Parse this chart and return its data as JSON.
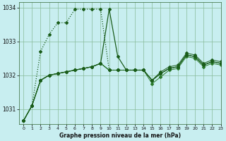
{
  "title": "Graphe pression niveau de la mer (hPa)",
  "bg_color": "#c8eef0",
  "grid_color": "#88bb99",
  "line_color_dark": "#1a5c1a",
  "line_color_mid": "#2a7a2a",
  "xlim": [
    -0.5,
    23
  ],
  "ylim": [
    1030.55,
    1034.15
  ],
  "yticks": [
    1031,
    1032,
    1033,
    1034
  ],
  "xticks": [
    0,
    1,
    2,
    3,
    4,
    5,
    6,
    7,
    8,
    9,
    10,
    11,
    12,
    13,
    14,
    15,
    16,
    17,
    18,
    19,
    20,
    21,
    22,
    23
  ],
  "series_dotted": [
    1030.65,
    1031.1,
    1032.7,
    1033.2,
    1033.55,
    1033.55,
    1033.95,
    1033.95,
    1033.95,
    1033.95,
    1032.15,
    1032.15,
    1032.15,
    1032.15,
    1032.15,
    1031.85,
    1032.05,
    1032.2,
    1032.25,
    1032.6,
    1032.55,
    1032.3,
    1032.4,
    1032.35
  ],
  "series_solid1": [
    1030.65,
    1031.1,
    1031.85,
    1032.0,
    1032.05,
    1032.1,
    1032.15,
    1032.2,
    1032.25,
    1032.35,
    1033.95,
    1032.55,
    1032.15,
    1032.15,
    1032.15,
    1031.85,
    1032.05,
    1032.2,
    1032.25,
    1032.6,
    1032.55,
    1032.3,
    1032.4,
    1032.35
  ],
  "series_solid2": [
    1030.65,
    1031.1,
    1031.85,
    1032.0,
    1032.05,
    1032.1,
    1032.15,
    1032.2,
    1032.25,
    1032.35,
    1032.15,
    1032.15,
    1032.15,
    1032.15,
    1032.15,
    1031.75,
    1031.95,
    1032.15,
    1032.2,
    1032.55,
    1032.5,
    1032.25,
    1032.35,
    1032.3
  ],
  "series_solid3": [
    1030.65,
    1031.1,
    1031.85,
    1032.0,
    1032.05,
    1032.1,
    1032.15,
    1032.2,
    1032.25,
    1032.35,
    1032.15,
    1032.15,
    1032.15,
    1032.15,
    1032.15,
    1031.85,
    1032.1,
    1032.25,
    1032.3,
    1032.65,
    1032.6,
    1032.35,
    1032.45,
    1032.4
  ],
  "series_solid4": [
    1030.65,
    1031.1,
    1031.85,
    1032.0,
    1032.05,
    1032.1,
    1032.15,
    1032.2,
    1032.25,
    1032.35,
    1032.15,
    1032.15,
    1032.15,
    1032.15,
    1032.15,
    1031.85,
    1032.05,
    1032.2,
    1032.25,
    1032.6,
    1032.55,
    1032.3,
    1032.4,
    1032.35
  ]
}
